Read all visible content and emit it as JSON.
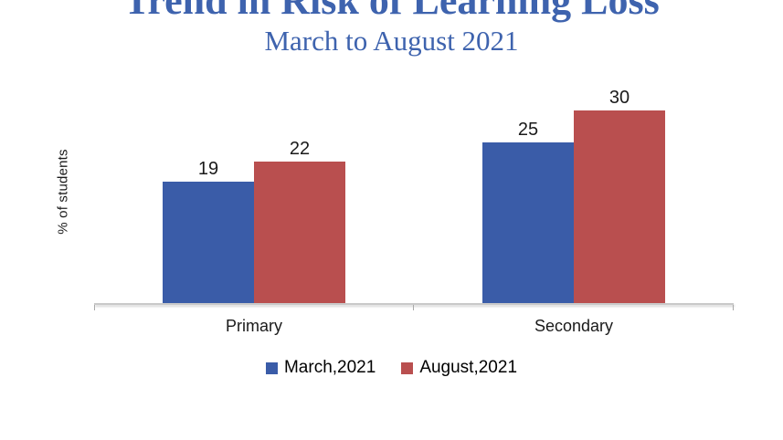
{
  "chart_data": {
    "type": "bar",
    "title": "Trend in Risk of Learning Loss",
    "subtitle": "March to August 2021",
    "categories": [
      "Primary",
      "Secondary"
    ],
    "series": [
      {
        "name": "March,2021",
        "color": "#3A5CA8",
        "values": [
          19,
          25
        ]
      },
      {
        "name": "August,2021",
        "color": "#B94F4F",
        "values": [
          22,
          30
        ]
      }
    ],
    "xlabel": "",
    "ylabel": "% of students",
    "ylim": [
      0,
      33
    ],
    "grid": false,
    "legend_position": "bottom",
    "data_labels": [
      [
        19,
        25
      ],
      [
        22,
        30
      ]
    ],
    "title_color": "#3E63AE",
    "subtitle_color": "#3E63AE",
    "axis_color": "#C9C9C9",
    "tick_color": "#A9A9A9",
    "text_color": "#1A1A1A"
  }
}
